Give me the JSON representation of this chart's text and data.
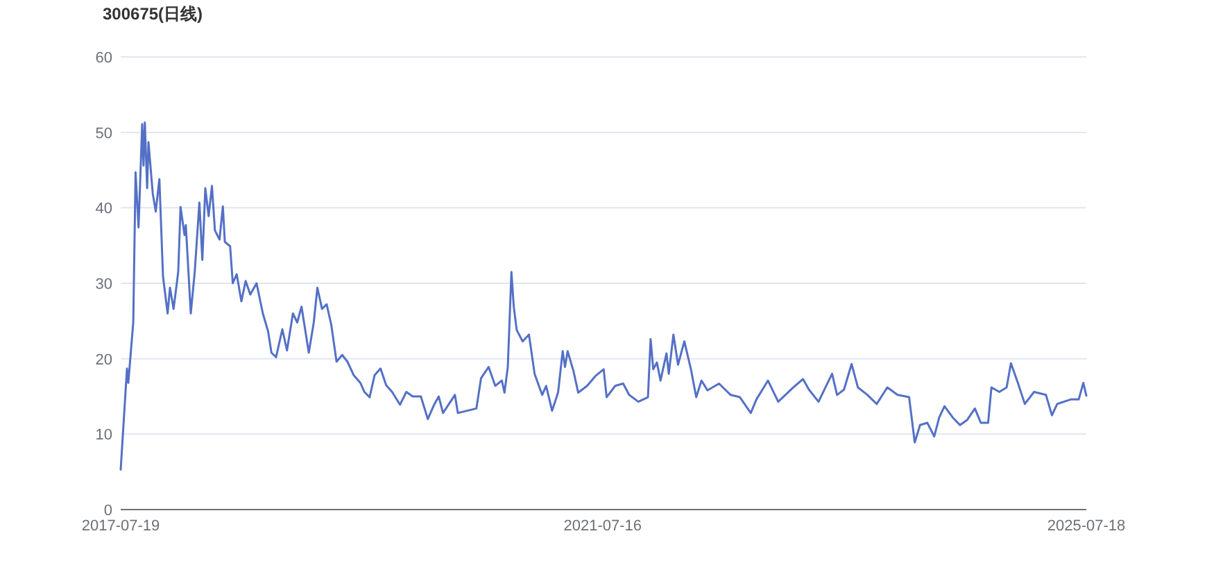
{
  "chart_data": {
    "type": "line",
    "title": "300675(日线)",
    "x": [
      "2017-07-19",
      "2017-08-07",
      "2017-08-11",
      "2017-08-26",
      "2017-09-02",
      "2017-09-11",
      "2017-09-22",
      "2017-09-26",
      "2017-09-30",
      "2017-10-07",
      "2017-10-11",
      "2017-10-24",
      "2017-11-02",
      "2017-11-13",
      "2017-11-24",
      "2017-12-08",
      "2017-12-15",
      "2017-12-26",
      "2018-01-09",
      "2018-01-16",
      "2018-01-28",
      "2018-02-01",
      "2018-02-16",
      "2018-02-28",
      "2018-03-14",
      "2018-03-23",
      "2018-04-01",
      "2018-04-11",
      "2018-04-21",
      "2018-04-30",
      "2018-05-14",
      "2018-05-24",
      "2018-05-30",
      "2018-06-15",
      "2018-06-23",
      "2018-07-05",
      "2018-07-19",
      "2018-08-01",
      "2018-08-15",
      "2018-09-03",
      "2018-09-22",
      "2018-10-08",
      "2018-10-18",
      "2018-11-01",
      "2018-11-20",
      "2018-12-04",
      "2018-12-22",
      "2019-01-04",
      "2019-01-17",
      "2019-02-08",
      "2019-02-23",
      "2019-03-06",
      "2019-03-20",
      "2019-04-03",
      "2019-04-17",
      "2019-05-03",
      "2019-05-20",
      "2019-06-05",
      "2019-06-24",
      "2019-07-14",
      "2019-07-26",
      "2019-08-11",
      "2019-08-26",
      "2019-09-13",
      "2019-09-30",
      "2019-10-18",
      "2019-11-11",
      "2019-11-30",
      "2019-12-19",
      "2020-01-13",
      "2020-02-03",
      "2020-02-21",
      "2020-03-07",
      "2020-03-20",
      "2020-04-25",
      "2020-05-04",
      "2020-06-29",
      "2020-07-13",
      "2020-08-05",
      "2020-08-25",
      "2020-09-14",
      "2020-09-22",
      "2020-10-02",
      "2020-10-13",
      "2020-10-20",
      "2020-10-29",
      "2020-11-16",
      "2020-12-05",
      "2020-12-22",
      "2021-01-14",
      "2021-01-26",
      "2021-02-13",
      "2021-03-03",
      "2021-03-17",
      "2021-03-24",
      "2021-04-01",
      "2021-04-19",
      "2021-05-03",
      "2021-05-30",
      "2021-06-24",
      "2021-07-19",
      "2021-07-28",
      "2021-08-23",
      "2021-09-16",
      "2021-10-04",
      "2021-11-01",
      "2021-11-30",
      "2021-12-08",
      "2021-12-16",
      "2021-12-27",
      "2022-01-07",
      "2022-01-25",
      "2022-02-01",
      "2022-02-15",
      "2022-03-01",
      "2022-03-20",
      "2022-04-09",
      "2022-04-25",
      "2022-05-11",
      "2022-05-29",
      "2022-07-03",
      "2022-08-07",
      "2022-09-04",
      "2022-10-07",
      "2022-10-24",
      "2022-11-28",
      "2022-12-29",
      "2023-02-13",
      "2023-03-14",
      "2023-04-01",
      "2023-04-30",
      "2023-05-21",
      "2023-06-10",
      "2023-06-25",
      "2023-07-16",
      "2023-08-08",
      "2023-08-27",
      "2023-09-25",
      "2023-10-23",
      "2023-11-24",
      "2023-12-25",
      "2024-01-29",
      "2024-02-15",
      "2024-03-02",
      "2024-03-24",
      "2024-04-14",
      "2024-04-29",
      "2024-05-15",
      "2024-06-09",
      "2024-07-01",
      "2024-07-23",
      "2024-08-15",
      "2024-09-02",
      "2024-09-24",
      "2024-10-04",
      "2024-10-28",
      "2024-11-19",
      "2024-12-02",
      "2024-12-23",
      "2025-01-13",
      "2025-02-10",
      "2025-03-18",
      "2025-04-05",
      "2025-04-21",
      "2025-06-01",
      "2025-06-25",
      "2025-07-09",
      "2025-07-18"
    ],
    "series": [
      {
        "color": "#5470c6",
        "values": [
          5.3,
          18.7,
          16.8,
          24.8,
          44.7,
          37.4,
          51.1,
          45.6,
          51.3,
          42.6,
          48.7,
          41.9,
          39.5,
          43.8,
          30.9,
          26.0,
          29.4,
          26.6,
          31.5,
          40.1,
          36.4,
          37.7,
          26.0,
          31.5,
          40.7,
          33.1,
          42.6,
          38.9,
          42.9,
          37.0,
          35.8,
          40.2,
          35.5,
          34.9,
          30.0,
          31.2,
          27.6,
          30.3,
          28.5,
          30.0,
          26.0,
          23.6,
          20.8,
          20.2,
          23.9,
          21.1,
          26.0,
          24.8,
          26.9,
          20.8,
          24.8,
          29.4,
          26.6,
          27.2,
          24.5,
          19.6,
          20.5,
          19.6,
          17.8,
          16.8,
          15.6,
          14.9,
          17.8,
          18.7,
          16.5,
          15.6,
          13.9,
          15.6,
          15.0,
          15.0,
          12.0,
          13.8,
          15.0,
          12.8,
          15.2,
          12.8,
          13.4,
          17.4,
          18.9,
          16.4,
          17.1,
          15.5,
          18.9,
          31.5,
          26.9,
          23.8,
          22.3,
          23.2,
          18.0,
          15.2,
          16.4,
          13.1,
          15.5,
          21.0,
          18.9,
          21.0,
          18.3,
          15.5,
          16.4,
          17.7,
          18.6,
          14.9,
          16.4,
          16.7,
          15.2,
          14.3,
          14.9,
          22.6,
          18.6,
          19.5,
          17.1,
          20.7,
          18.0,
          23.2,
          19.2,
          22.3,
          18.6,
          14.9,
          17.1,
          15.8,
          16.7,
          15.2,
          14.9,
          12.8,
          14.6,
          17.1,
          14.3,
          16.2,
          17.3,
          15.9,
          14.3,
          16.2,
          18.0,
          15.2,
          15.9,
          19.3,
          16.2,
          15.2,
          14.0,
          16.2,
          15.2,
          14.9,
          8.9,
          11.2,
          11.5,
          9.7,
          12.2,
          13.7,
          12.2,
          11.2,
          11.9,
          13.4,
          11.5,
          11.5,
          16.2,
          15.6,
          16.2,
          19.4,
          16.8,
          14.0,
          15.6,
          15.2,
          12.5,
          14.0,
          14.6,
          14.6,
          16.8,
          15.1
        ]
      }
    ],
    "xlim": [
      "2017-07-19",
      "2025-07-18"
    ],
    "xticks": [
      "2017-07-19",
      "2021-07-16",
      "2025-07-18"
    ],
    "ylim": [
      0,
      60
    ],
    "yticks": [
      0,
      10,
      20,
      30,
      40,
      50,
      60
    ],
    "grid": "y"
  }
}
